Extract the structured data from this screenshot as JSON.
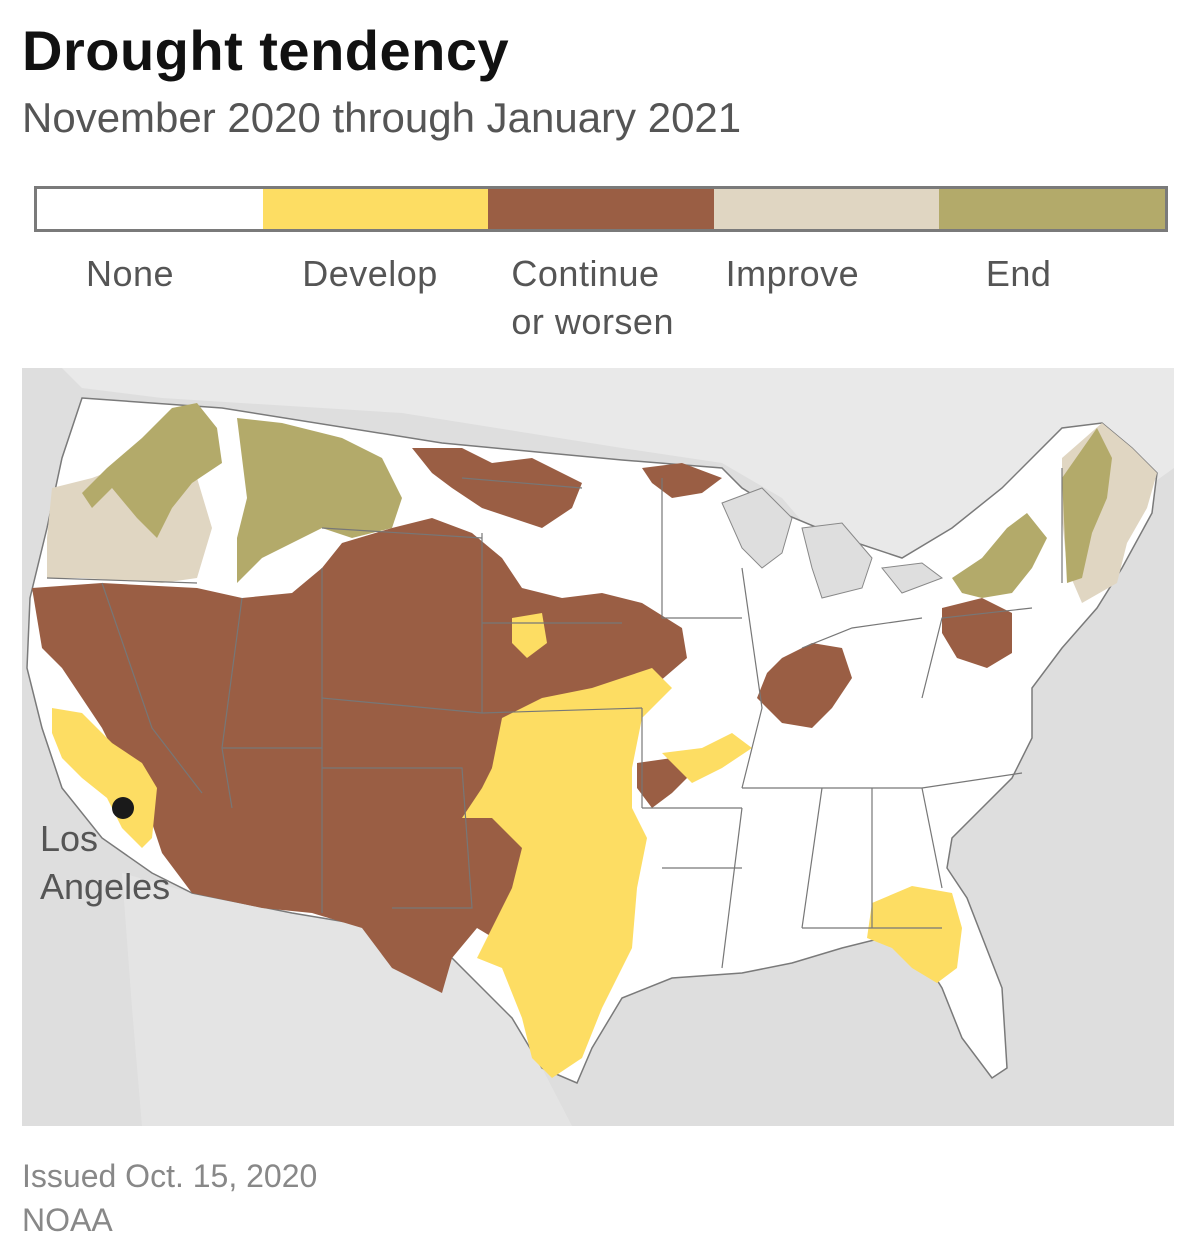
{
  "title": "Drought tendency",
  "subtitle": "November 2020 through January 2021",
  "legend": [
    {
      "label": "None",
      "color": "#ffffff"
    },
    {
      "label": "Develop",
      "color": "#fddd63"
    },
    {
      "label": "Continue\nor worsen",
      "color": "#9a5e44"
    },
    {
      "label": "Improve",
      "color": "#e0d6c2"
    },
    {
      "label": "End",
      "color": "#b3aa6a"
    }
  ],
  "map": {
    "marker_label": "Los\nAngeles",
    "land_color": "#ffffff",
    "background_color": "#dedede",
    "border_color": "#666666"
  },
  "footer": {
    "issued": "Issued Oct. 15, 2020",
    "source": "NOAA"
  }
}
